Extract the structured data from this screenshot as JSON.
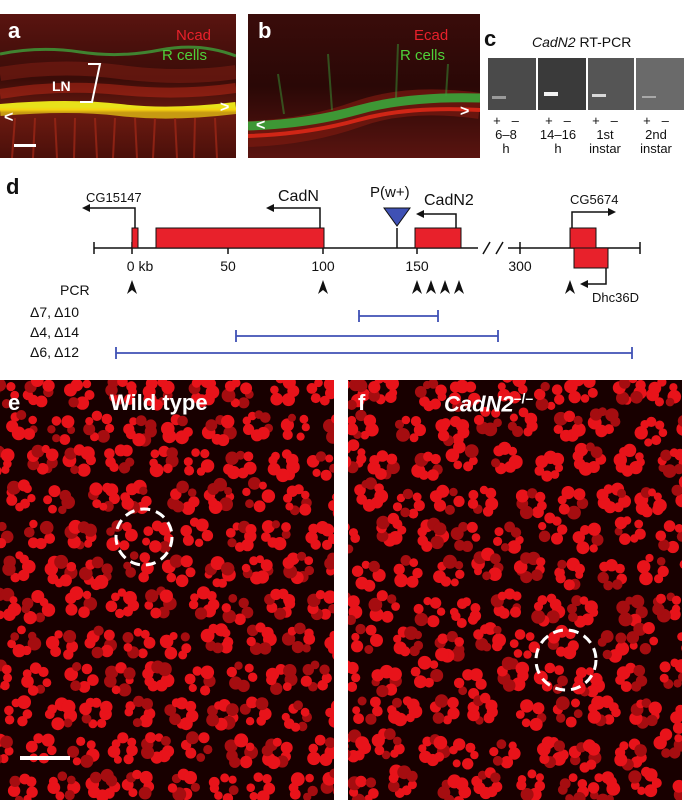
{
  "panel_a": {
    "label": "a",
    "stain1": "Ncad",
    "stain2": "R cells",
    "region": "LN",
    "left_arrow": "<",
    "right_arrow": ">"
  },
  "panel_b": {
    "label": "b",
    "stain1": "Ecad",
    "stain2": "R cells",
    "left_arrow": "<",
    "right_arrow": ">"
  },
  "panel_c": {
    "label": "c",
    "title_gene": "CadN2",
    "title_rest": " RT-PCR",
    "lanes": [
      {
        "plus": "+",
        "minus": "–",
        "stage_line1": "6–8",
        "stage_line2": "h"
      },
      {
        "plus": "+",
        "minus": "–",
        "stage_line1": "14–16",
        "stage_line2": "h"
      },
      {
        "plus": "+",
        "minus": "–",
        "stage_line1": "1st",
        "stage_line2": "instar"
      },
      {
        "plus": "+",
        "minus": "–",
        "stage_line1": "2nd",
        "stage_line2": "instar"
      }
    ]
  },
  "panel_d": {
    "label": "d",
    "genes": [
      "CG15147",
      "CadN",
      "CadN2",
      "CG5674",
      "Dhc36D"
    ],
    "insertion": "P(w+)",
    "ticks": [
      "0 kb",
      "50",
      "100",
      "150",
      "300"
    ],
    "pcr_label": "PCR",
    "deletions": [
      "Δ7, Δ10",
      "Δ4, Δ14",
      "Δ6, Δ12"
    ],
    "colors": {
      "exon": "#e8212b",
      "deletion": "#3f51b5",
      "insertion": "#3f51b5"
    }
  },
  "panel_e": {
    "label": "e",
    "title": "Wild type"
  },
  "panel_f": {
    "label": "f",
    "title_gene": "CadN2",
    "title_sup": "–/–"
  }
}
